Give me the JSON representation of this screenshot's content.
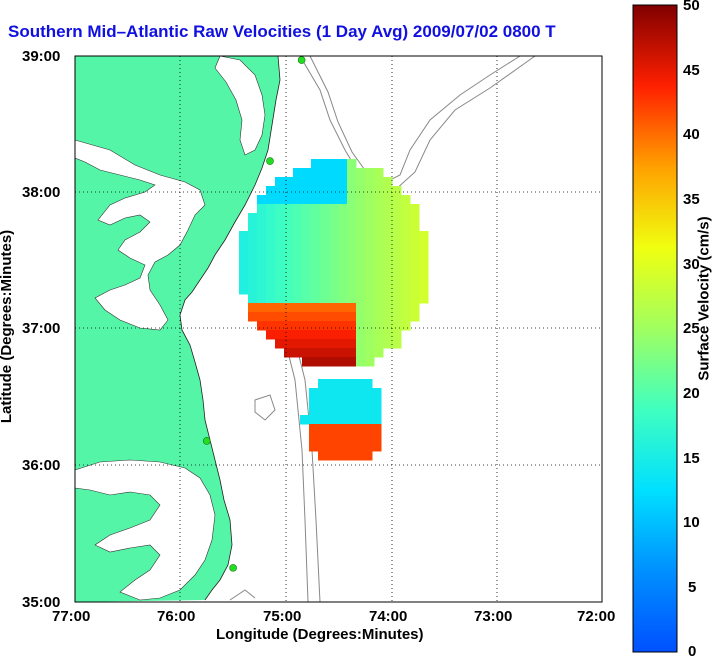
{
  "title": "Southern Mid–Atlantic Raw Velocities (1 Day Avg) 2009/07/02 0800",
  "title_suffix": "T",
  "xlabel": "Longitude (Degrees:Minutes)",
  "ylabel": "Latitude (Degrees:Minutes)",
  "x_ticks": [
    "77:00",
    "76:00",
    "75:00",
    "74:00",
    "73:00",
    "72:00"
  ],
  "y_ticks": [
    "39:00",
    "38:00",
    "37:00",
    "36:00",
    "35:00"
  ],
  "colorbar": {
    "label": "Surface Velocity (cm/s)",
    "ticks": [
      "50",
      "45",
      "40",
      "35",
      "30",
      "25",
      "20",
      "15",
      "10",
      "5",
      "0"
    ]
  },
  "colors": {
    "land": "#55f5a8",
    "title": "#1010e0",
    "contour": "#888888"
  },
  "chart_data": {
    "type": "heatmap",
    "title": "Southern Mid–Atlantic Raw Velocities (1 Day Avg) 2009/07/02 0800 T",
    "xlabel": "Longitude (Degrees:Minutes)",
    "ylabel": "Latitude (Degrees:Minutes)",
    "xlim": [
      -77,
      -72
    ],
    "ylim": [
      35,
      39
    ],
    "clim": [
      0,
      50
    ],
    "colorbar_label": "Surface Velocity (cm/s)",
    "stations": [
      {
        "lon": -74.85,
        "lat": 38.97
      },
      {
        "lon": -75.15,
        "lat": 38.23
      },
      {
        "lon": -75.75,
        "lat": 36.18
      },
      {
        "lon": -75.5,
        "lat": 35.25
      }
    ]
  }
}
